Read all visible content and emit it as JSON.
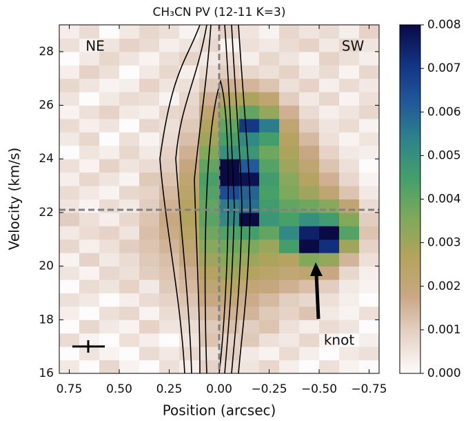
{
  "chart_data": {
    "type": "heatmap",
    "title": "CH₃CN PV (12-11 K=3)",
    "xlabel": "Position (arcsec)",
    "ylabel": "Velocity (km/s)",
    "annotations": [
      "NE",
      "SW",
      "knot"
    ],
    "xlim": [
      0.8,
      -0.8
    ],
    "ylim": [
      16,
      29
    ],
    "xticks": [
      {
        "value": 0.75,
        "label": "0.75"
      },
      {
        "value": 0.5,
        "label": "0.50"
      },
      {
        "value": 0.25,
        "label": "0.25"
      },
      {
        "value": 0,
        "label": "0.00"
      },
      {
        "value": -0.25,
        "label": "−0.25"
      },
      {
        "value": -0.5,
        "label": "−0.50"
      },
      {
        "value": -0.75,
        "label": "−0.75"
      }
    ],
    "yticks": [
      16,
      18,
      20,
      22,
      24,
      26,
      28
    ],
    "reference_lines": {
      "x": 0,
      "y": 22.1,
      "color": "#808080"
    },
    "colorbar": {
      "lim": [
        0,
        0.008
      ],
      "ticks": [
        {
          "value": 0,
          "label": "0.000"
        },
        {
          "value": 0.001,
          "label": "0.001"
        },
        {
          "value": 0.002,
          "label": "0.002"
        },
        {
          "value": 0.003,
          "label": "0.003"
        },
        {
          "value": 0.004,
          "label": "0.004"
        },
        {
          "value": 0.005,
          "label": "0.005"
        },
        {
          "value": 0.006,
          "label": "0.006"
        },
        {
          "value": 0.007,
          "label": "0.007"
        },
        {
          "value": 0.008,
          "label": "0.008"
        }
      ]
    },
    "colormap": [
      "#fdfbfb",
      "#e6d3c8",
      "#c9a784",
      "#b4a35e",
      "#7fa95a",
      "#45a06a",
      "#2f8489",
      "#22589a",
      "#123382",
      "#0a0a45"
    ],
    "x": [
      0.75,
      0.65,
      0.55,
      0.45,
      0.35,
      0.25,
      0.15,
      0.05,
      -0.05,
      -0.15,
      -0.25,
      -0.35,
      -0.45,
      -0.55,
      -0.65,
      -0.75
    ],
    "y": [
      16.25,
      16.75,
      17.25,
      17.75,
      18.25,
      18.75,
      19.25,
      19.75,
      20.25,
      20.75,
      21.25,
      21.75,
      22.25,
      22.75,
      23.25,
      23.75,
      24.25,
      24.75,
      25.25,
      25.75,
      26.25,
      26.75,
      27.25,
      27.75,
      28.25,
      28.75
    ],
    "z": [
      [
        0.0004,
        0,
        0.0008,
        0.0002,
        0,
        0.0006,
        0.0003,
        0.0009,
        0.0007,
        0.0005,
        0.0008,
        0.0003,
        0,
        0.0006,
        0.0002,
        0
      ],
      [
        0,
        0.0005,
        0.0002,
        0,
        0.0007,
        0.0004,
        0.0008,
        0.0006,
        0.001,
        0.0004,
        0.0002,
        0.0007,
        0.0003,
        0,
        0.0004,
        0.0006
      ],
      [
        0.0007,
        0.0002,
        0,
        0.0006,
        0.0003,
        0,
        0.0005,
        0.0012,
        0.0009,
        0.0011,
        0.0006,
        0.0004,
        0.0008,
        0.0002,
        0,
        0.0003
      ],
      [
        0,
        0.0008,
        0.0004,
        0.0002,
        0.0009,
        0.0005,
        0.0007,
        0.0011,
        0.0013,
        0.001,
        0.0012,
        0.0006,
        0.0003,
        0.0007,
        0.0005,
        0
      ],
      [
        0.0003,
        0,
        0.0006,
        0.0008,
        0.0002,
        0.0007,
        0.001,
        0.0014,
        0.0016,
        0.0015,
        0.0011,
        0.0009,
        0.0012,
        0.0004,
        0.0002,
        0.0006
      ],
      [
        0.0006,
        0.0004,
        0,
        0.0003,
        0.0007,
        0.0009,
        0.0012,
        0.0018,
        0.002,
        0.0017,
        0.0014,
        0.001,
        0.0008,
        0.0006,
        0.0003,
        0
      ],
      [
        0,
        0.0007,
        0.0005,
        0.0009,
        0.0004,
        0.0011,
        0.0014,
        0.0022,
        0.0025,
        0.0021,
        0.0019,
        0.0016,
        0.0013,
        0.001,
        0.0004,
        0.0002
      ],
      [
        0.0005,
        0.0002,
        0.0008,
        0.0006,
        0.001,
        0.0012,
        0.0016,
        0.0026,
        0.003,
        0.0027,
        0.0024,
        0.0021,
        0.0023,
        0.0018,
        0.0008,
        0.0003
      ],
      [
        0.0002,
        0.0009,
        0.0004,
        0.0007,
        0.0011,
        0.0013,
        0.0019,
        0.003,
        0.0034,
        0.0031,
        0.0028,
        0.0026,
        0.0035,
        0.0032,
        0.0015,
        0.0006
      ],
      [
        0.0008,
        0.0003,
        0.0006,
        0.001,
        0.0012,
        0.0015,
        0.0022,
        0.0034,
        0.0038,
        0.0036,
        0.0031,
        0.0045,
        0.008,
        0.0072,
        0.003,
        0.0009
      ],
      [
        0.0004,
        0.0007,
        0.0009,
        0.0005,
        0.0013,
        0.0017,
        0.0025,
        0.0038,
        0.0043,
        0.0045,
        0.004,
        0.0052,
        0.0075,
        0.008,
        0.0042,
        0.0012
      ],
      [
        0.001,
        0.0006,
        0.0003,
        0.0008,
        0.0012,
        0.0018,
        0.0027,
        0.0041,
        0.0052,
        0.008,
        0.0048,
        0.0044,
        0.005,
        0.0046,
        0.0035,
        0.001
      ],
      [
        0.0005,
        0.0002,
        0.0007,
        0.0004,
        0.001,
        0.0016,
        0.0026,
        0.004,
        0.0055,
        0.0058,
        0.0046,
        0.004,
        0.0038,
        0.0034,
        0.0022,
        0.0007
      ],
      [
        0.0007,
        0.0004,
        0.0002,
        0.0008,
        0.0009,
        0.0014,
        0.0024,
        0.0042,
        0.0065,
        0.006,
        0.0044,
        0.0036,
        0.003,
        0.0022,
        0.0012,
        0.0004
      ],
      [
        0.0003,
        0.0008,
        0.0005,
        0.0002,
        0.0011,
        0.0012,
        0.0022,
        0.0044,
        0.008,
        0.0078,
        0.0046,
        0.0034,
        0.0026,
        0.0016,
        0.0008,
        0.0002
      ],
      [
        0.0006,
        0.0002,
        0.0009,
        0.0005,
        0.0007,
        0.001,
        0.0019,
        0.004,
        0.008,
        0.0062,
        0.0042,
        0.003,
        0.0022,
        0.0012,
        0.0006,
        0
      ],
      [
        0,
        0.0005,
        0.0003,
        0.0008,
        0.0004,
        0.0009,
        0.0016,
        0.0035,
        0.005,
        0.0048,
        0.0038,
        0.0028,
        0.0018,
        0.0009,
        0.0004,
        0.0003
      ],
      [
        0.0004,
        0.0008,
        0,
        0.0006,
        0.0002,
        0.0007,
        0.0013,
        0.003,
        0.0044,
        0.0052,
        0.0045,
        0.0026,
        0.0014,
        0.0006,
        0.0002,
        0.0005
      ],
      [
        0.0007,
        0.0003,
        0.0005,
        0,
        0.0008,
        0.0006,
        0.0011,
        0.0027,
        0.004,
        0.007,
        0.0055,
        0.0022,
        0.001,
        0.0005,
        0.0007,
        0.0002
      ],
      [
        0.0002,
        0.0006,
        0.0009,
        0.0004,
        0.0003,
        0.0008,
        0.0009,
        0.0022,
        0.0034,
        0.004,
        0.0032,
        0.0016,
        0.0007,
        0.0003,
        0.0005,
        0.0008
      ],
      [
        0.0005,
        0,
        0.0004,
        0.0007,
        0.0006,
        0.0002,
        0.0008,
        0.0016,
        0.0026,
        0.0028,
        0.0022,
        0.001,
        0.0004,
        0.0008,
        0.0002,
        0.0006
      ],
      [
        0.0008,
        0.0005,
        0.0002,
        0.0003,
        0.0009,
        0.0005,
        0.0006,
        0.0011,
        0.0016,
        0.0015,
        0.0012,
        0.0006,
        0.0009,
        0.0003,
        0.0007,
        0.0004
      ],
      [
        0.0003,
        0.0009,
        0.0006,
        0,
        0.0004,
        0.0008,
        0.0003,
        0.0007,
        0.001,
        0.0008,
        0.0006,
        0.0009,
        0.0004,
        0.0007,
        0.0002,
        0.0008
      ],
      [
        0,
        0.0004,
        0.0008,
        0.0005,
        0.0002,
        0.0006,
        0.0009,
        0.0004,
        0.0007,
        0.0003,
        0.0008,
        0.0005,
        0.0002,
        0.0009,
        0.0006,
        0.0003
      ],
      [
        0.0006,
        0.0002,
        0.0005,
        0.0009,
        0.0007,
        0.0003,
        0.0005,
        0.0008,
        0.0002,
        0.0006,
        0.0004,
        0.0007,
        0.0009,
        0.0004,
        0.0008,
        0.0005
      ],
      [
        0.0003,
        0.0007,
        0,
        0.0004,
        0.0008,
        0.0006,
        0.0002,
        0.0006,
        0.0009,
        0.0005,
        0.0002,
        0.0008,
        0.0005,
        0.0007,
        0.0003,
        0.0009
      ]
    ]
  }
}
